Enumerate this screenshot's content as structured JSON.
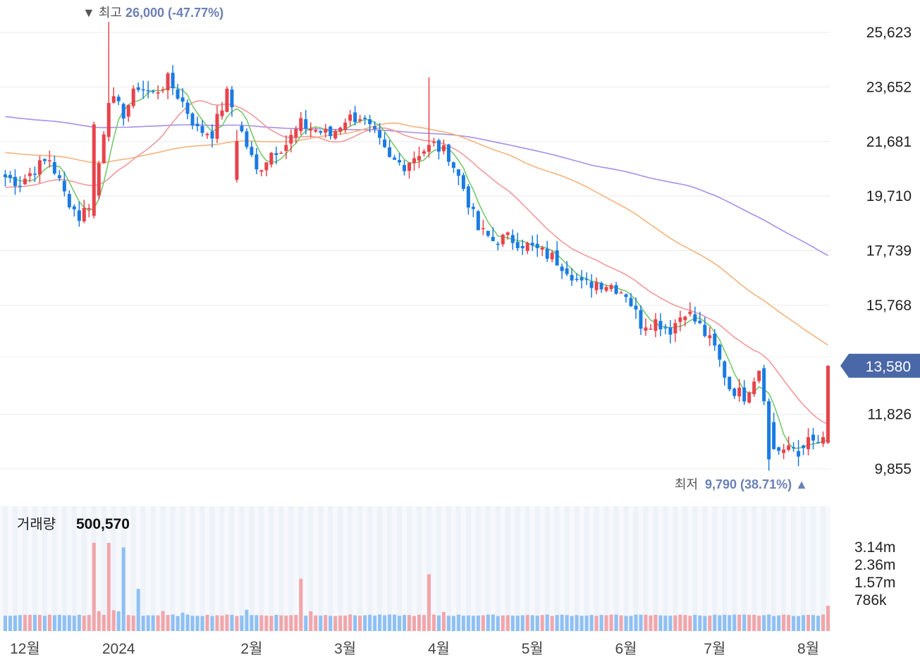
{
  "chart_data": {
    "type": "candlestick",
    "price_axis": {
      "ticks": [
        "25,623",
        "23,652",
        "21,681",
        "19,710",
        "17,739",
        "15,768",
        "11,826",
        "9,855"
      ],
      "tick_values": [
        25623,
        23652,
        21681,
        19710,
        17739,
        15768,
        11826,
        9855
      ],
      "range": [
        9855,
        25623
      ]
    },
    "current_price": {
      "label": "13,580",
      "value": 13580
    },
    "high_marker": {
      "prefix": "▼ 최고",
      "text": "26,000 (-47.77%)",
      "value": 26000
    },
    "low_marker": {
      "prefix": "최저",
      "text": "9,790 (38.71%) ▲",
      "value": 9790
    },
    "x_axis": {
      "labels": [
        "12월",
        "2024",
        "2월",
        "3월",
        "4월",
        "5월",
        "6월",
        "7월",
        "8월"
      ],
      "positions": [
        4,
        23,
        50,
        69,
        88,
        107,
        126,
        144,
        163
      ]
    },
    "volume": {
      "label": "거래량",
      "value": "500,570",
      "ticks": [
        "3.14m",
        "2.36m",
        "1.57m",
        "786k"
      ],
      "tick_values": [
        3140000,
        2360000,
        1570000,
        786000
      ]
    },
    "colors": {
      "up": "#e8434b",
      "down": "#1a7be2",
      "ma5": "#77c96b",
      "ma20": "#f09a9a",
      "ma60": "#f5b37c",
      "ma120": "#a98ee8",
      "volume_up": "#f1a6aa",
      "volume_down": "#8fc0f3",
      "badge": "#4a68a8",
      "annotation": "#6a80b5"
    }
  }
}
